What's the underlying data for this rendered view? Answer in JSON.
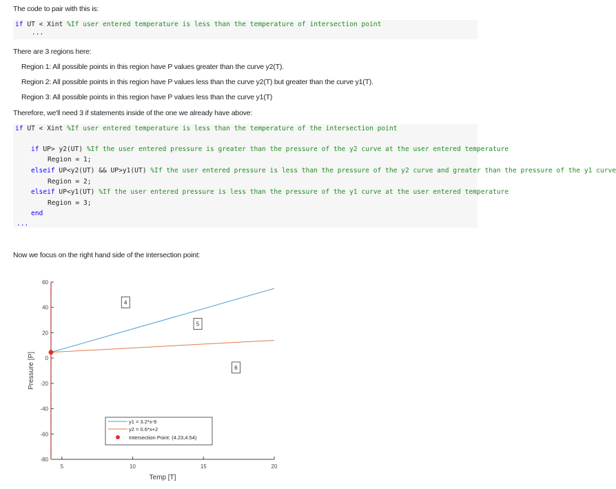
{
  "intro": "The code to pair with this is:",
  "code1": {
    "kw": "if",
    "expr": " UT < Xint ",
    "comment": "%If user entered temperature is less than the temperature of intersection point",
    "dots": "..."
  },
  "regions_intro": "There are 3 regions here:",
  "regions": [
    "Region 1: All possible points in this region have P values greater than the curve y2(T).",
    "Region 2: All possible points in this region have P values less than the curve y2(T) but greater than the curve y1(T).",
    "Region 3: All possible points in this region have P values less than the curve y1(T)"
  ],
  "therefore": "Therefore, we'll need 3 if statements inside of the one we already have above:",
  "code2": {
    "l1_kw": "if",
    "l1_expr": " UT < Xint ",
    "l1_comment": "%If user entered temperature is less than the temperature of the intersection point",
    "l2_kw": "if",
    "l2_expr": " UP> y2(UT) ",
    "l2_comment": "%If the user entered pressure is greater than the pressure of the y2 curve at the user entered temperature",
    "l3": "Region = 1;",
    "l4_kw": "elseif",
    "l4_expr": " UP<y2(UT) && UP>y1(UT) ",
    "l4_comment": "%If the user entered pressure is less than the pressure of the y2 curve and greater than the pressure of the y1 curve",
    "l5": "Region = 2;",
    "l6_kw": "elseif",
    "l6_expr": " UP<y1(UT) ",
    "l6_comment": "%If the user entered pressure is less than the pressure of the y1 curve at the user entered temperature",
    "l7": "Region = 3;",
    "l8_kw": "end",
    "dots": "..."
  },
  "right_side": "Now we focus on the right hand side of the intersection point:",
  "chart_data": {
    "type": "line",
    "xlabel": "Temp [T]",
    "ylabel": "Pressure [P]",
    "xlim": [
      4.23,
      20
    ],
    "ylim": [
      -80,
      60
    ],
    "xticks": [
      5,
      10,
      15,
      20
    ],
    "yticks": [
      -80,
      -60,
      -40,
      -20,
      0,
      20,
      40,
      60
    ],
    "series": [
      {
        "name": "y1 = 3.2*x-9",
        "color": "#4a9bd4",
        "x": [
          4.23,
          20
        ],
        "y": [
          4.54,
          55
        ]
      },
      {
        "name": "y2 = 0.6*x+2",
        "color": "#e07a4a",
        "x": [
          4.23,
          20
        ],
        "y": [
          4.54,
          14
        ]
      }
    ],
    "point": {
      "name": "Intersection Point: (4.23,4.54)",
      "color": "#e0322f",
      "x": 4.23,
      "y": 4.54
    },
    "vline": {
      "x": 4.23,
      "color": "#e0322f"
    },
    "region_labels": [
      {
        "text": "4",
        "x": 9.5,
        "y": 44
      },
      {
        "text": "5",
        "x": 14.6,
        "y": 27
      },
      {
        "text": "6",
        "x": 17.3,
        "y": -7.5
      }
    ],
    "legend_position": "bottom-center",
    "grid": false
  }
}
